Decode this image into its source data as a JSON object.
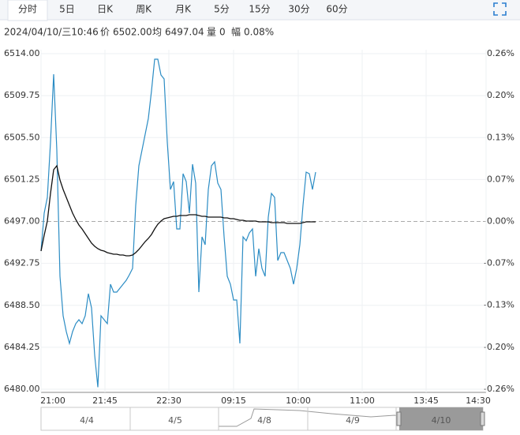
{
  "toolbar": {
    "tabs": [
      "分时",
      "5日",
      "日K",
      "周K",
      "月K",
      "5分",
      "15分",
      "30分",
      "60分"
    ]
  },
  "info": {
    "datetime": "2024/04/10/三10:46",
    "price_label": "价",
    "price": "6502.00",
    "avg_label": "均",
    "avg": "6497.04",
    "vol_label": "量",
    "vol": "0",
    "amp_label": "幅",
    "amp": "0.08%"
  },
  "chart_data": {
    "type": "line",
    "x_labels": [
      "21:00",
      "21:45",
      "22:30",
      "09:15",
      "10:00",
      "11:00",
      "13:45",
      "14:30"
    ],
    "ylim": [
      6480,
      6514
    ],
    "yticks": [
      {
        "value": 6514,
        "label": "6514.00"
      },
      {
        "value": 6509.75,
        "label": "6509.75"
      },
      {
        "value": 6505.5,
        "label": "6505.50"
      },
      {
        "value": 6501.25,
        "label": "6501.25"
      },
      {
        "value": 6497,
        "label": "6497.00"
      },
      {
        "value": 6492.75,
        "label": "6492.75"
      },
      {
        "value": 6488.5,
        "label": "6488.50"
      },
      {
        "value": 6484.25,
        "label": "6484.25"
      },
      {
        "value": 6480,
        "label": "6480.00"
      }
    ],
    "y2lim": [
      -0.2617,
      0.2617
    ],
    "y2ticks": [
      {
        "value": 0.2617,
        "label": "0.26%"
      },
      {
        "value": 0.1962,
        "label": "0.20%"
      },
      {
        "value": 0.1308,
        "label": "0.13%"
      },
      {
        "value": 0.0654,
        "label": "0.07%"
      },
      {
        "value": 0,
        "label": "0.00%"
      },
      {
        "value": -0.0654,
        "label": "-0.07%"
      },
      {
        "value": -0.1308,
        "label": "-0.13%"
      },
      {
        "value": -0.1962,
        "label": "-0.20%"
      },
      {
        "value": -0.2617,
        "label": "-0.26%"
      }
    ],
    "baseline": 6497,
    "up_color": "#e0302a",
    "down_color": "#1f9e2c",
    "flat_color": "#333333",
    "series": [
      {
        "color": "#2b8cc4",
        "values": [
          6494.0,
          6497.84,
          6499.44,
          6505.04,
          6511.92,
          6504.24,
          6491.44,
          6487.44,
          6485.84,
          6484.64,
          6485.84,
          6486.64,
          6487.04,
          6486.64,
          6487.44,
          6489.68,
          6488.24,
          6483.44,
          6480.2,
          6487.44,
          6487.04,
          6486.64,
          6490.64,
          6489.84,
          6489.84,
          6490.24,
          6490.64,
          6491.04,
          6491.6,
          6492.24,
          6498.64,
          6502.64,
          6504.24,
          6505.84,
          6507.44,
          6510.24,
          6513.44,
          6513.44,
          6511.84,
          6511.44,
          6505.04,
          6500.24,
          6501.04,
          6496.24,
          6496.24,
          6501.84,
          6501.04,
          6497.84,
          6502.8,
          6500.88,
          6489.84,
          6495.44,
          6494.64,
          6500.24,
          6502.64,
          6503.04,
          6500.88,
          6500.24,
          6495.44,
          6491.44,
          6490.64,
          6489.04,
          6489.04,
          6484.64,
          6495.44,
          6495.04,
          6495.84,
          6496.24,
          6491.44,
          6494.24,
          6492.24,
          6491.44,
          6497.44,
          6499.84,
          6499.44,
          6493.04,
          6493.84,
          6493.84,
          6493.04,
          6492.24,
          6490.64,
          6492.24,
          6494.64,
          6498.64,
          6502.0,
          6501.84,
          6500.24,
          6502.0
        ]
      },
      {
        "color": "#111111",
        "values": [
          6494.0,
          6495.6,
          6497.04,
          6499.84,
          6502.24,
          6502.64,
          6501.2,
          6500.24,
          6499.44,
          6498.64,
          6497.84,
          6497.2,
          6496.64,
          6496.24,
          6495.76,
          6495.28,
          6494.8,
          6494.48,
          6494.24,
          6494.08,
          6494.0,
          6493.84,
          6493.76,
          6493.68,
          6493.68,
          6493.6,
          6493.6,
          6493.52,
          6493.52,
          6493.6,
          6493.84,
          6494.16,
          6494.56,
          6494.96,
          6495.28,
          6495.68,
          6496.24,
          6496.72,
          6497.04,
          6497.28,
          6497.36,
          6497.44,
          6497.52,
          6497.52,
          6497.6,
          6497.6,
          6497.6,
          6497.68,
          6497.68,
          6497.68,
          6497.6,
          6497.52,
          6497.52,
          6497.44,
          6497.44,
          6497.44,
          6497.44,
          6497.44,
          6497.36,
          6497.36,
          6497.28,
          6497.28,
          6497.2,
          6497.12,
          6497.12,
          6497.04,
          6497.04,
          6497.04,
          6497.04,
          6496.96,
          6496.96,
          6496.96,
          6496.96,
          6496.88,
          6496.88,
          6496.88,
          6496.88,
          6496.88,
          6496.8,
          6496.8,
          6496.8,
          6496.8,
          6496.8,
          6496.88,
          6496.96,
          6496.96,
          6496.96,
          6496.96
        ]
      }
    ]
  },
  "navigator": {
    "dates": [
      "4/4",
      "4/5",
      "4/8",
      "4/9",
      "4/10"
    ]
  }
}
